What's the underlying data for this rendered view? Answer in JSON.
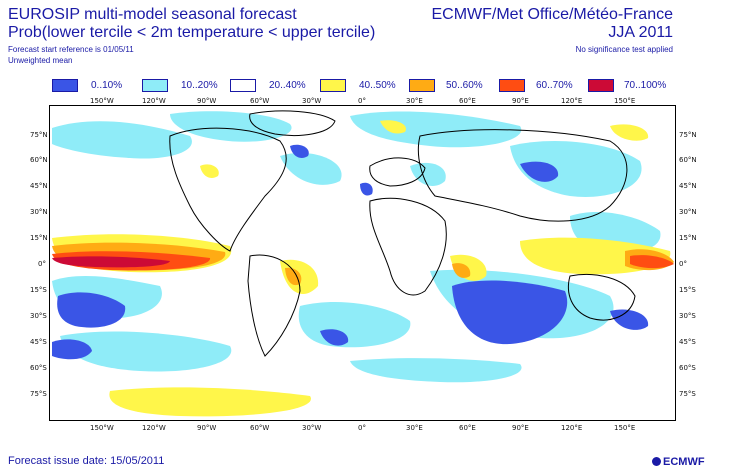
{
  "header": {
    "title_left": "EUROSIP multi-model seasonal forecast",
    "title_right": "ECMWF/Met Office/Météo-France",
    "subtitle_left": "Prob(lower tercile < 2m temperature < upper tercile)",
    "subtitle_right": "JJA 2011",
    "note_start": "Forecast start reference is 01/05/11",
    "note_mean": "Unweighted mean",
    "note_significance": "No significance test applied"
  },
  "legend": [
    {
      "label": "0..10%",
      "color": "#3a55e6"
    },
    {
      "label": "10..20%",
      "color": "#8fecf8"
    },
    {
      "label": "20..40%",
      "color": "#ffffff"
    },
    {
      "label": "40..50%",
      "color": "#fff64a"
    },
    {
      "label": "50..60%",
      "color": "#ffab14"
    },
    {
      "label": "60..70%",
      "color": "#ff4d12"
    },
    {
      "label": "70..100%",
      "color": "#cc0a36"
    }
  ],
  "axes": {
    "lon_labels": [
      "150°W",
      "120°W",
      "90°W",
      "60°W",
      "30°W",
      "0°",
      "30°E",
      "60°E",
      "90°E",
      "120°E",
      "150°E"
    ],
    "lat_labels": [
      "75°N",
      "60°N",
      "45°N",
      "30°N",
      "15°N",
      "0°",
      "15°S",
      "30°S",
      "45°S",
      "60°S",
      "75°S"
    ]
  },
  "footer": {
    "issue_date": "Forecast issue date: 15/05/2011",
    "logo_text": "ECMWF"
  }
}
